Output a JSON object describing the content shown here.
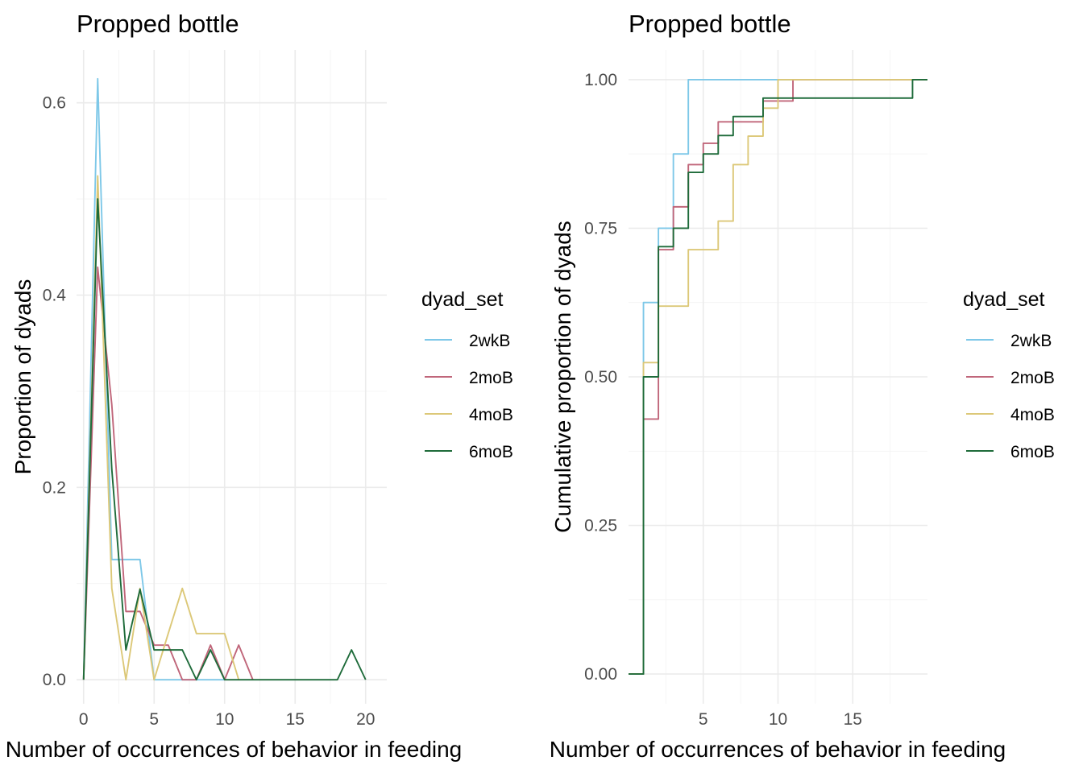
{
  "chart_data": [
    {
      "type": "line",
      "title": "Propped bottle",
      "xlabel": "Number of occurrences of behavior in feeding",
      "ylabel": "Proportion of dyads",
      "xlim": [
        -0.5,
        21.5
      ],
      "ylim": [
        -0.025,
        0.655
      ],
      "xticks": [
        0,
        5,
        10,
        15,
        20
      ],
      "yticks": [
        0.0,
        0.2,
        0.4,
        0.6
      ],
      "ytick_labels": [
        "0.0",
        "0.2",
        "0.4",
        "0.6"
      ],
      "grid": true,
      "legend": {
        "title": "dyad_set",
        "position": "right"
      },
      "series": [
        {
          "name": "2wkB",
          "color": "#7ec8e8",
          "x": [
            0,
            1,
            2,
            3,
            4,
            5,
            6,
            7,
            8,
            9,
            10
          ],
          "y": [
            0.0,
            0.625,
            0.125,
            0.125,
            0.125,
            0.0,
            0.0,
            0.0,
            0.0,
            0.0,
            0.0
          ]
        },
        {
          "name": "2moB",
          "color": "#c0667a",
          "x": [
            0,
            1,
            2,
            3,
            4,
            5,
            6,
            7,
            8,
            9,
            10,
            11,
            12
          ],
          "y": [
            0.0,
            0.429,
            0.286,
            0.071,
            0.071,
            0.036,
            0.036,
            0.0,
            0.0,
            0.036,
            0.0,
            0.036,
            0.0
          ]
        },
        {
          "name": "4moB",
          "color": "#dcc878",
          "x": [
            0,
            1,
            2,
            3,
            4,
            5,
            6,
            7,
            8,
            9,
            10,
            11
          ],
          "y": [
            0.0,
            0.524,
            0.095,
            0.0,
            0.095,
            0.0,
            0.048,
            0.095,
            0.048,
            0.048,
            0.048,
            0.0
          ]
        },
        {
          "name": "6moB",
          "color": "#1e6b3a",
          "x": [
            0,
            1,
            2,
            3,
            4,
            5,
            6,
            7,
            8,
            9,
            10,
            11,
            12,
            13,
            14,
            15,
            16,
            17,
            18,
            19,
            20
          ],
          "y": [
            0.0,
            0.5,
            0.219,
            0.031,
            0.094,
            0.031,
            0.031,
            0.031,
            0.0,
            0.031,
            0.0,
            0.0,
            0.0,
            0.0,
            0.0,
            0.0,
            0.0,
            0.0,
            0.0,
            0.031,
            0.0
          ]
        }
      ]
    },
    {
      "type": "line",
      "step": true,
      "title": "Propped bottle",
      "xlabel": "Number of occurrences of behavior in feeding",
      "ylabel": "Cumulative proportion of dyads",
      "xlim": [
        0,
        20
      ],
      "ylim": [
        -0.05,
        1.05
      ],
      "xticks": [
        5,
        10,
        15
      ],
      "yticks": [
        0.0,
        0.25,
        0.5,
        0.75,
        1.0
      ],
      "ytick_labels": [
        "0.00",
        "0.25",
        "0.50",
        "0.75",
        "1.00"
      ],
      "grid": true,
      "legend": {
        "title": "dyad_set",
        "position": "right"
      },
      "series": [
        {
          "name": "2wkB",
          "color": "#7ec8e8",
          "x": [
            0,
            1,
            2,
            3,
            4,
            20
          ],
          "y": [
            0.0,
            0.625,
            0.75,
            0.875,
            1.0,
            1.0
          ]
        },
        {
          "name": "2moB",
          "color": "#c0667a",
          "x": [
            0,
            1,
            2,
            3,
            4,
            5,
            6,
            7,
            8,
            9,
            10,
            11,
            20
          ],
          "y": [
            0.0,
            0.429,
            0.714,
            0.786,
            0.857,
            0.893,
            0.929,
            0.929,
            0.929,
            0.964,
            0.964,
            1.0,
            1.0
          ]
        },
        {
          "name": "4moB",
          "color": "#dcc878",
          "x": [
            0,
            1,
            2,
            3,
            4,
            5,
            6,
            7,
            8,
            9,
            10,
            20
          ],
          "y": [
            0.0,
            0.524,
            0.619,
            0.619,
            0.714,
            0.714,
            0.762,
            0.857,
            0.905,
            0.952,
            1.0,
            1.0
          ]
        },
        {
          "name": "6moB",
          "color": "#1e6b3a",
          "x": [
            0,
            1,
            2,
            3,
            4,
            5,
            6,
            7,
            8,
            9,
            10,
            11,
            12,
            13,
            14,
            15,
            16,
            17,
            18,
            19,
            20
          ],
          "y": [
            0.0,
            0.5,
            0.719,
            0.75,
            0.844,
            0.875,
            0.906,
            0.938,
            0.938,
            0.969,
            0.969,
            0.969,
            0.969,
            0.969,
            0.969,
            0.969,
            0.969,
            0.969,
            0.969,
            1.0,
            1.0
          ]
        }
      ]
    }
  ]
}
